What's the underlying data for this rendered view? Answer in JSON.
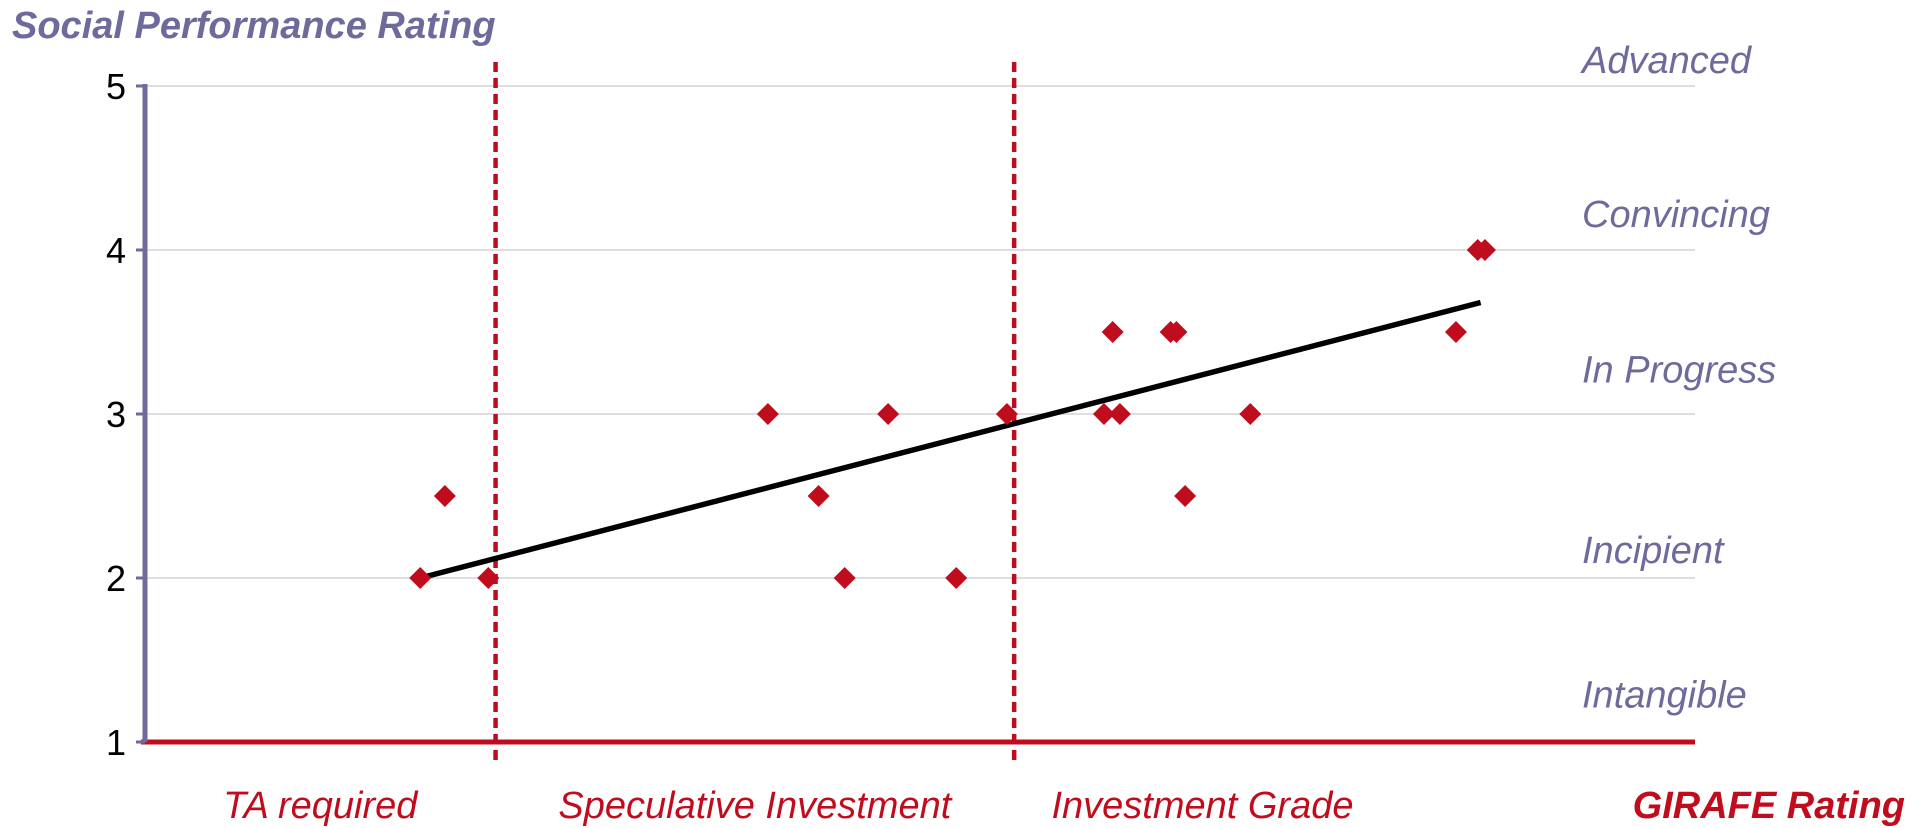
{
  "chart_data": {
    "type": "scatter",
    "title": "",
    "ylabel": "Social Performance Rating",
    "xlabel": "GIRAFE Rating",
    "ylim": [
      1,
      5
    ],
    "yticks": [
      "1",
      "2",
      "3",
      "4",
      "5"
    ],
    "grid": true,
    "levels": [
      {
        "label": "Advanced",
        "y": 5.16
      },
      {
        "label": "Convincing",
        "y": 4.22
      },
      {
        "label": "In Progress",
        "y": 3.27
      },
      {
        "label": "Incipient",
        "y": 2.17
      },
      {
        "label": "Intangible",
        "y": 1.29
      }
    ],
    "zones": [
      "TA required",
      "Speculative Investment",
      "Investment Grade"
    ],
    "zone_boundaries": [
      1.42,
      5.0
    ],
    "xlim": [
      -1.0,
      9.7
    ],
    "points": [
      {
        "x": 0.9,
        "y": 2.0
      },
      {
        "x": 1.07,
        "y": 2.5
      },
      {
        "x": 1.37,
        "y": 2.0
      },
      {
        "x": 3.3,
        "y": 3.0
      },
      {
        "x": 3.65,
        "y": 2.5
      },
      {
        "x": 3.83,
        "y": 2.0
      },
      {
        "x": 4.13,
        "y": 3.0
      },
      {
        "x": 4.6,
        "y": 2.0
      },
      {
        "x": 4.95,
        "y": 3.0
      },
      {
        "x": 5.62,
        "y": 3.0
      },
      {
        "x": 5.68,
        "y": 3.5
      },
      {
        "x": 5.73,
        "y": 3.0
      },
      {
        "x": 6.08,
        "y": 3.5
      },
      {
        "x": 6.12,
        "y": 3.5
      },
      {
        "x": 6.18,
        "y": 2.5
      },
      {
        "x": 6.63,
        "y": 3.0
      },
      {
        "x": 8.05,
        "y": 3.5
      },
      {
        "x": 8.2,
        "y": 4.0
      },
      {
        "x": 8.25,
        "y": 4.0
      }
    ],
    "trendline": {
      "x": [
        0.9,
        8.22
      ],
      "y": [
        2.0,
        3.68
      ]
    },
    "colors": {
      "points": "#c00d1e",
      "y_axis": "#6e6a9c",
      "x_axis": "#c00d1e",
      "gridlines": "#d4d4d4",
      "trendline": "#000000",
      "level_labels": "#6e6a9c",
      "zone_labels": "#c00d1e"
    }
  }
}
